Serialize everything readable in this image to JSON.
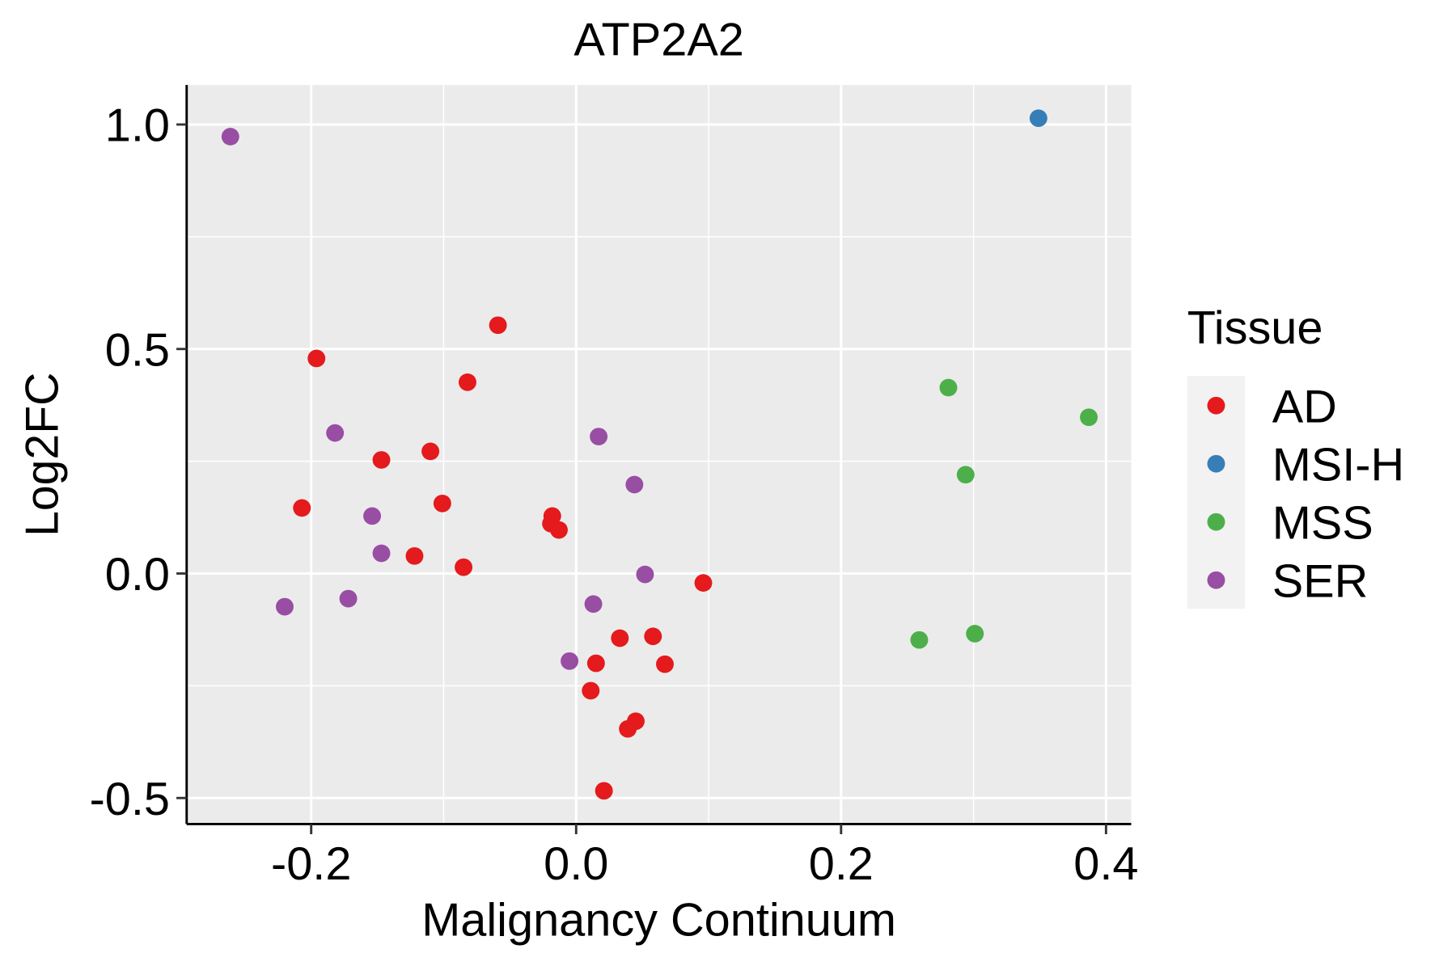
{
  "chart_data": {
    "type": "scatter",
    "title": "ATP2A2",
    "xlabel": "Malignancy Continuum",
    "ylabel": "Log2FC",
    "xlim": [
      -0.294,
      0.419
    ],
    "ylim": [
      -0.558,
      1.088
    ],
    "xticks": [
      -0.2,
      0.0,
      0.2,
      0.4
    ],
    "xtick_labels": [
      "-0.2",
      "0.0",
      "0.2",
      "0.4"
    ],
    "yticks": [
      -0.5,
      0.0,
      0.5,
      1.0
    ],
    "ytick_labels": [
      "-0.5",
      "0.0",
      "0.5",
      "1.0"
    ],
    "grid": true,
    "legend": {
      "title": "Tissue",
      "placement": "right"
    },
    "series": [
      {
        "name": "AD",
        "color": "#E41A1C",
        "points": [
          [
            -0.196,
            0.479
          ],
          [
            -0.059,
            0.553
          ],
          [
            -0.082,
            0.426
          ],
          [
            -0.11,
            0.272
          ],
          [
            -0.147,
            0.253
          ],
          [
            -0.207,
            0.146
          ],
          [
            -0.101,
            0.156
          ],
          [
            -0.122,
            0.039
          ],
          [
            -0.085,
            0.014
          ],
          [
            -0.018,
            0.128
          ],
          [
            -0.019,
            0.111
          ],
          [
            -0.013,
            0.097
          ],
          [
            0.096,
            -0.021
          ],
          [
            0.033,
            -0.144
          ],
          [
            0.058,
            -0.14
          ],
          [
            0.015,
            -0.2
          ],
          [
            0.067,
            -0.202
          ],
          [
            0.011,
            -0.261
          ],
          [
            0.045,
            -0.329
          ],
          [
            0.039,
            -0.346
          ],
          [
            0.021,
            -0.484
          ]
        ]
      },
      {
        "name": "MSI-H",
        "color": "#377EB8",
        "points": [
          [
            0.349,
            1.014
          ]
        ]
      },
      {
        "name": "MSS",
        "color": "#4DAF4A",
        "points": [
          [
            0.281,
            0.414
          ],
          [
            0.387,
            0.348
          ],
          [
            0.294,
            0.22
          ],
          [
            0.259,
            -0.148
          ],
          [
            0.301,
            -0.134
          ]
        ]
      },
      {
        "name": "SER",
        "color": "#984EA3",
        "points": [
          [
            -0.261,
            0.973
          ],
          [
            -0.182,
            0.313
          ],
          [
            -0.154,
            0.128
          ],
          [
            -0.147,
            0.045
          ],
          [
            -0.172,
            -0.056
          ],
          [
            -0.22,
            -0.074
          ],
          [
            0.017,
            0.305
          ],
          [
            0.044,
            0.198
          ],
          [
            0.052,
            -0.002
          ],
          [
            0.013,
            -0.068
          ],
          [
            -0.005,
            -0.195
          ]
        ]
      }
    ]
  }
}
